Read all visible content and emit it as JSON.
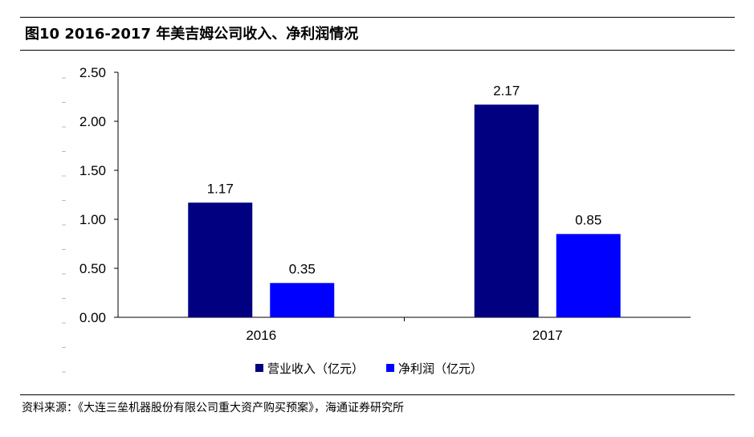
{
  "title": "图10 2016-2017 年美吉姆公司收入、净利润情况",
  "source": "资料来源：《大连三垒机器股份有限公司重大资产购买预案》，海通证券研究所",
  "chart_data": {
    "type": "bar",
    "categories": [
      "2016",
      "2017"
    ],
    "series": [
      {
        "name": "营业收入（亿元）",
        "values": [
          1.17,
          2.17
        ],
        "color": "#000080"
      },
      {
        "name": "净利润（亿元）",
        "values": [
          0.35,
          0.85
        ],
        "color": "#0000ff"
      }
    ],
    "ylim": [
      0,
      2.5
    ],
    "yticks": [
      "0.00",
      "0.50",
      "1.00",
      "1.50",
      "2.00",
      "2.50"
    ],
    "data_labels": [
      [
        "1.17",
        "2.17"
      ],
      [
        "0.35",
        "0.85"
      ]
    ],
    "legend_position": "bottom",
    "grid": false
  }
}
